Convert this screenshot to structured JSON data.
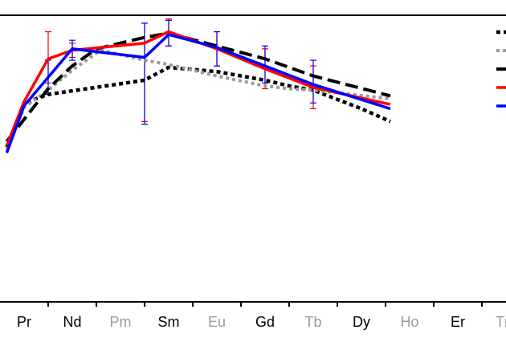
{
  "chart_data": {
    "type": "line",
    "title": "",
    "xlabel": "",
    "ylabel": "",
    "categories": [
      "Pr",
      "Nd",
      "Pm",
      "Sm",
      "Eu",
      "Gd",
      "Tb",
      "Dy",
      "Ho",
      "Er",
      "Tm"
    ],
    "tick_labels": [
      {
        "text": "Pr",
        "color": "#000000"
      },
      {
        "text": "Nd",
        "color": "#000000"
      },
      {
        "text": "Pm",
        "color": "#9a9a9a"
      },
      {
        "text": "Sm",
        "color": "#000000"
      },
      {
        "text": "Eu",
        "color": "#9a9a9a"
      },
      {
        "text": "Gd",
        "color": "#000000"
      },
      {
        "text": "Tb",
        "color": "#9a9a9a"
      },
      {
        "text": "Dy",
        "color": "#000000"
      },
      {
        "text": "Ho",
        "color": "#9a9a9a"
      },
      {
        "text": "Er",
        "color": "#000000"
      },
      {
        "text": "Tm",
        "color": "#9a9a9a"
      }
    ],
    "x_range": [
      -0.36,
      9.5
    ],
    "ylim": [
      0,
      1
    ],
    "grid": false,
    "legend_position": "top-right",
    "series": [
      {
        "color": "#000000",
        "style": "dotted-bold",
        "points": [
          [
            -0.36,
            0.54
          ],
          [
            0,
            0.695
          ],
          [
            0.5,
            0.725
          ],
          [
            2.5,
            0.775
          ],
          [
            3,
            0.82
          ],
          [
            4,
            0.805
          ],
          [
            5,
            0.775
          ],
          [
            5.5,
            0.755
          ],
          [
            6,
            0.74
          ],
          [
            7,
            0.675
          ],
          [
            7.6,
            0.63
          ]
        ],
        "errors": null
      },
      {
        "color": "#9a9a9a",
        "style": "dotted",
        "points": [
          [
            -0.36,
            0.53
          ],
          [
            0,
            0.68
          ],
          [
            0.5,
            0.74
          ],
          [
            1,
            0.81
          ],
          [
            1.5,
            0.87
          ],
          [
            1.55,
            0.875
          ],
          [
            1.6,
            0.88
          ],
          [
            2.5,
            0.845
          ],
          [
            3,
            0.83
          ],
          [
            4,
            0.79
          ],
          [
            5,
            0.755
          ],
          [
            5.5,
            0.745
          ],
          [
            6,
            0.74
          ],
          [
            7.6,
            0.71
          ]
        ],
        "errors": null
      },
      {
        "color": "#000000",
        "style": "dashed",
        "points": [
          [
            -0.36,
            0.56
          ],
          [
            0.5,
            0.745
          ],
          [
            1,
            0.825
          ],
          [
            1.5,
            0.885
          ],
          [
            2.5,
            0.925
          ],
          [
            3,
            0.94
          ],
          [
            4,
            0.895
          ],
          [
            5,
            0.85
          ],
          [
            6,
            0.79
          ],
          [
            7.6,
            0.72
          ]
        ],
        "errors": null
      },
      {
        "color": "#ff0000",
        "style": "solid",
        "points": [
          [
            -0.36,
            0.545
          ],
          [
            0,
            0.7
          ],
          [
            0.5,
            0.85
          ],
          [
            1,
            0.88
          ],
          [
            2.5,
            0.905
          ],
          [
            3,
            0.945
          ],
          [
            4,
            0.885
          ],
          [
            5,
            0.815
          ],
          [
            6,
            0.75
          ],
          [
            7.6,
            0.69
          ]
        ],
        "errors": [
          null,
          null,
          [
            0.765,
            0.945
          ],
          [
            0.855,
            0.905
          ],
          [
            0.63,
            0.975
          ],
          [
            0.895,
            0.99
          ],
          [
            0.825,
            0.945
          ],
          [
            0.745,
            0.885
          ],
          [
            0.675,
            0.825
          ],
          null
        ]
      },
      {
        "color": "#0000ff",
        "style": "solid",
        "points": [
          [
            -0.36,
            0.52
          ],
          [
            0,
            0.685
          ],
          [
            0.5,
            0.785
          ],
          [
            1,
            0.885
          ],
          [
            2.5,
            0.855
          ],
          [
            3,
            0.935
          ],
          [
            4,
            0.89
          ],
          [
            5,
            0.825
          ],
          [
            6,
            0.76
          ],
          [
            7.6,
            0.675
          ]
        ],
        "errors": [
          null,
          null,
          [
            0.725,
            0.845
          ],
          [
            0.845,
            0.915
          ],
          [
            0.62,
            0.975
          ],
          [
            0.895,
            0.985
          ],
          [
            0.825,
            0.945
          ],
          [
            0.765,
            0.895
          ],
          [
            0.695,
            0.845
          ],
          null
        ]
      }
    ]
  }
}
